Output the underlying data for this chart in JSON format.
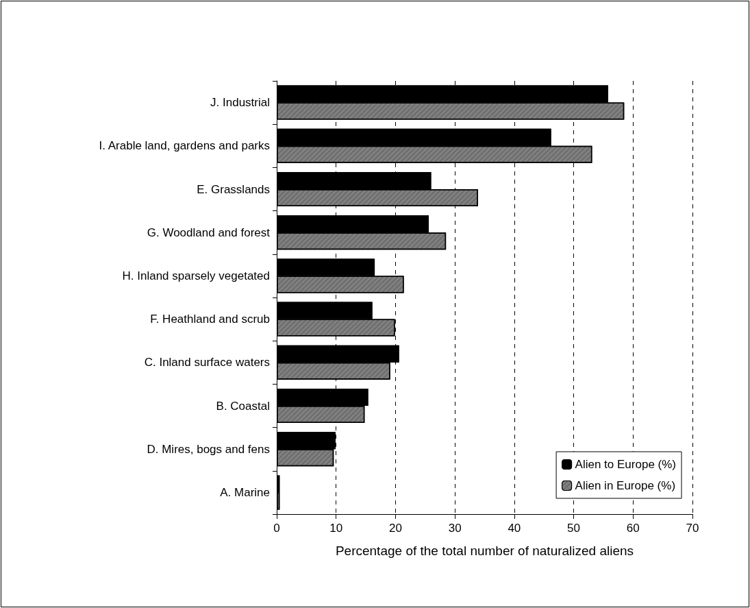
{
  "chart_data": {
    "type": "bar",
    "orientation": "horizontal",
    "xlabel": "Percentage of the total number of naturalized aliens",
    "categories": [
      "J. Industrial",
      "I. Arable land, gardens and parks",
      "E. Grasslands",
      "G. Woodland and forest",
      "H. Inland sparsely vegetated",
      "F. Heathland and scrub",
      "C. Inland surface waters",
      "B. Coastal",
      "D. Mires, bogs and fens",
      "A. Marine"
    ],
    "series": [
      {
        "name": "Alien to Europe (%)",
        "color": "#000000",
        "values": [
          55.8,
          46.2,
          26.0,
          25.6,
          16.5,
          16.1,
          20.6,
          15.4,
          9.9,
          0.5
        ]
      },
      {
        "name": "Alien in Europe (%)",
        "color": "#808080",
        "values": [
          58.5,
          53.1,
          33.9,
          28.5,
          21.4,
          19.9,
          19.1,
          14.8,
          9.6,
          0.5
        ]
      }
    ],
    "xlim": [
      0,
      70
    ],
    "xticks": [
      0,
      10,
      20,
      30,
      40,
      50,
      60,
      70
    ],
    "grid": "x",
    "legend": "bottom right"
  }
}
